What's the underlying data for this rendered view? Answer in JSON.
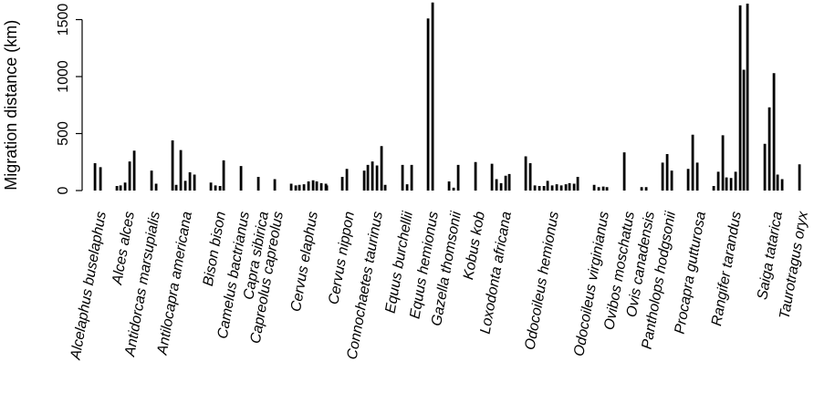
{
  "chart_data": {
    "type": "bar",
    "ylabel": "Migration distance (km)",
    "ylim": [
      0,
      1650
    ],
    "yticks": [
      0,
      500,
      1000,
      1500
    ],
    "ytick_labels": [
      "0",
      "500",
      "1000",
      "1500"
    ],
    "grid": false,
    "legend": "none",
    "bar_color": "#000000",
    "categories": [
      "Alcelaphus buselaphus",
      "Alces alces",
      "Antidorcas marsupialis",
      "Antilocapra americana",
      "Bison bison",
      "Camelus bactrianus",
      "Capra sibirica",
      "Capreolus capreolus",
      "Cervus elaphus",
      "Cervus nippon",
      "Connochaetes taurinus",
      "Equus burchellii",
      "Equus hemionus",
      "Gazella thomsonii",
      "Kobus kob",
      "Loxodonta africana",
      "Odocoileus hemionus",
      "Odocoileus virginianus",
      "Ovibos moschatus",
      "Ovis canadensis",
      "Pantholops hodgsonii",
      "Procapra gutturosa",
      "Rangifer tarandus",
      "Saiga tatarica",
      "Taurotragus oryx"
    ],
    "groups": [
      {
        "category": "Alcelaphus buselaphus",
        "values": [
          240,
          205
        ]
      },
      {
        "category": "Alces alces",
        "values": [
          40,
          45,
          70,
          255,
          350
        ]
      },
      {
        "category": "Antidorcas marsupialis",
        "values": [
          175,
          60
        ]
      },
      {
        "category": "Antilocapra americana",
        "values": [
          440,
          50,
          355,
          85,
          160,
          140
        ]
      },
      {
        "category": "Bison bison",
        "values": [
          70,
          45,
          40,
          265
        ]
      },
      {
        "category": "Camelus bactrianus",
        "values": [
          215
        ]
      },
      {
        "category": "Capra sibirica",
        "values": [
          120
        ]
      },
      {
        "category": "Capreolus capreolus",
        "values": [
          100
        ]
      },
      {
        "category": "Cervus elaphus",
        "values": [
          60,
          45,
          50,
          55,
          80,
          90,
          80,
          65,
          60,
          45
        ]
      },
      {
        "category": "Cervus nippon",
        "values": [
          120,
          190
        ]
      },
      {
        "category": "Connochaetes taurinus",
        "values": [
          175,
          225,
          255,
          220,
          390,
          50
        ]
      },
      {
        "category": "Equus burchellii",
        "values": [
          225,
          55,
          225
        ]
      },
      {
        "category": "Equus hemionus",
        "values": [
          1510,
          1650
        ]
      },
      {
        "category": "Gazella thomsonii",
        "values": [
          80,
          25,
          225
        ]
      },
      {
        "category": "Kobus kob",
        "values": [
          250
        ]
      },
      {
        "category": "Loxodonta africana",
        "values": [
          235,
          100,
          65,
          130,
          145
        ]
      },
      {
        "category": "Odocoileus hemionus",
        "values": [
          300,
          240,
          45,
          40,
          40,
          85,
          45,
          55,
          45,
          55,
          65,
          60,
          120
        ]
      },
      {
        "category": "Odocoileus virginianus",
        "values": [
          50,
          30,
          35,
          30
        ]
      },
      {
        "category": "Ovibos moschatus",
        "values": [
          335
        ]
      },
      {
        "category": "Ovis canadensis",
        "values": [
          30,
          30
        ]
      },
      {
        "category": "Pantholops hodgsonii",
        "values": [
          245,
          320,
          175
        ]
      },
      {
        "category": "Procapra gutturosa",
        "values": [
          190,
          490,
          245
        ]
      },
      {
        "category": "Rangifer tarandus",
        "values": [
          40,
          165,
          485,
          115,
          110,
          165,
          1625,
          1060,
          1640
        ]
      },
      {
        "category": "Saiga tatarica",
        "values": [
          410,
          730,
          1030,
          140,
          100
        ]
      },
      {
        "category": "Taurotragus oryx",
        "values": [
          230
        ]
      }
    ]
  }
}
